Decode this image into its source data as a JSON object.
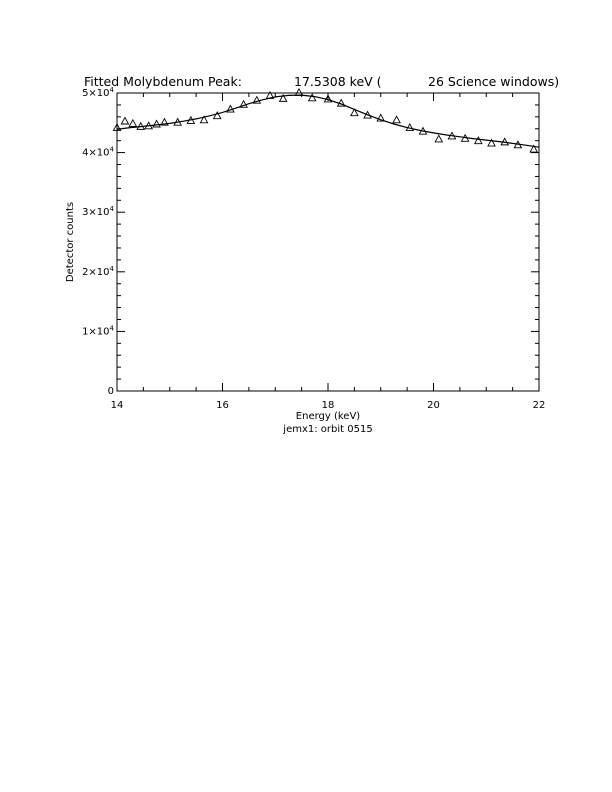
{
  "title": {
    "label": "Fitted Molybdenum Peak:",
    "energy": "17.5308 keV (",
    "windows": "26 Science windows)"
  },
  "footer": "jemx1: orbit 0515",
  "chart_data": {
    "type": "scatter",
    "xlabel": "Energy (keV)",
    "ylabel": "Detector counts",
    "xlim": [
      14,
      22
    ],
    "ylim": [
      0,
      50000
    ],
    "grid": false,
    "x_ticks": [
      {
        "value": 14,
        "label": "14"
      },
      {
        "value": 16,
        "label": "16"
      },
      {
        "value": 18,
        "label": "18"
      },
      {
        "value": 20,
        "label": "20"
      },
      {
        "value": 22,
        "label": "22"
      }
    ],
    "x_minor_step": 0.5,
    "y_ticks": [
      {
        "value": 0,
        "mant": "0",
        "exp": ""
      },
      {
        "value": 10000,
        "mant": "1×10",
        "exp": "4"
      },
      {
        "value": 20000,
        "mant": "2×10",
        "exp": "4"
      },
      {
        "value": 30000,
        "mant": "3×10",
        "exp": "4"
      },
      {
        "value": 40000,
        "mant": "4×10",
        "exp": "4"
      },
      {
        "value": 50000,
        "mant": "5×10",
        "exp": "4"
      }
    ],
    "y_minor_step": 2000,
    "series": [
      {
        "marker": "triangle",
        "x": [
          14.0,
          14.15,
          14.3,
          14.45,
          14.6,
          14.75,
          14.9,
          15.15,
          15.4,
          15.65,
          15.9,
          16.15,
          16.4,
          16.65,
          16.9,
          17.15,
          17.45,
          17.7,
          18.0,
          18.25,
          18.5,
          18.75,
          19.0,
          19.3,
          19.55,
          19.8,
          20.1,
          20.35,
          20.6,
          20.85,
          21.1,
          21.35,
          21.6,
          21.9
        ],
        "y": [
          44200,
          45300,
          44900,
          44400,
          44500,
          44800,
          45100,
          45100,
          45400,
          45500,
          46200,
          47300,
          48100,
          48800,
          49600,
          49100,
          50100,
          49200,
          49000,
          48300,
          46700,
          46300,
          45800,
          45500,
          44200,
          43600,
          42300,
          42800,
          42400,
          42000,
          41600,
          41800,
          41300,
          40600
        ]
      },
      {
        "marker": "line",
        "x": [
          14.0,
          14.25,
          14.5,
          14.75,
          15.0,
          15.25,
          15.5,
          15.75,
          16.0,
          16.25,
          16.5,
          16.75,
          17.0,
          17.25,
          17.5,
          17.75,
          18.0,
          18.25,
          18.5,
          18.75,
          19.0,
          19.25,
          19.5,
          19.75,
          20.0,
          20.25,
          20.5,
          20.75,
          21.0,
          21.25,
          21.5,
          21.75,
          22.0
        ],
        "y": [
          43900,
          44200,
          44400,
          44650,
          44900,
          45250,
          45650,
          46150,
          46750,
          47450,
          48200,
          48850,
          49350,
          49600,
          49650,
          49400,
          48900,
          48150,
          47250,
          46350,
          45500,
          44800,
          44200,
          43700,
          43300,
          42950,
          42650,
          42350,
          42100,
          41850,
          41550,
          41250,
          40900
        ]
      }
    ]
  }
}
